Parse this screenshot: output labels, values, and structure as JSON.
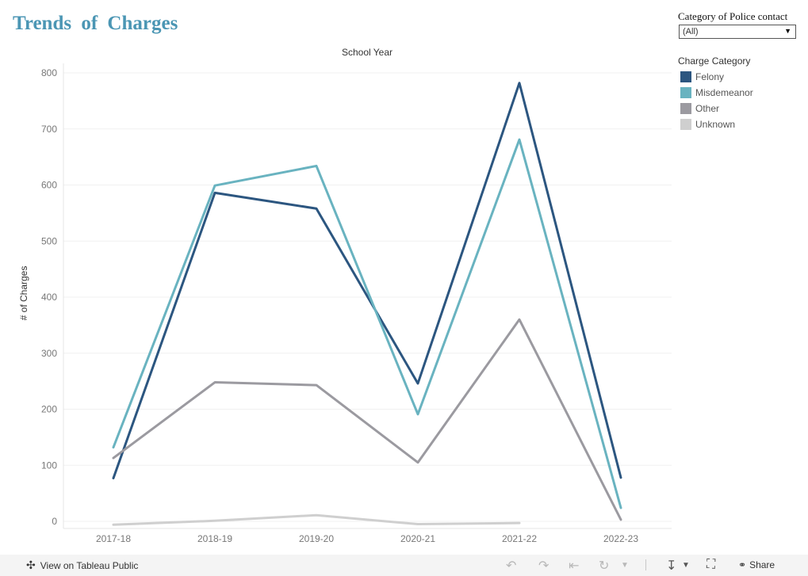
{
  "title": "Trends  of  Charges",
  "filter": {
    "label": "Category of Police contact",
    "value": "(All)"
  },
  "legend": {
    "title": "Charge Category",
    "items": [
      {
        "label": "Felony",
        "color": "#2c5680"
      },
      {
        "label": "Misdemeanor",
        "color": "#69b3c0"
      },
      {
        "label": "Other",
        "color": "#9b9aa0"
      },
      {
        "label": "Unknown",
        "color": "#cfcfcf"
      }
    ]
  },
  "footer": {
    "view_link": "View on Tableau Public",
    "share_label": "Share"
  },
  "chart_data": {
    "type": "line",
    "title": "School Year",
    "xlabel": "",
    "ylabel": "# of Charges",
    "categories": [
      "2017-18",
      "2018-19",
      "2019-20",
      "2020-21",
      "2021-22",
      "2022-23"
    ],
    "ylim": [
      0,
      800
    ],
    "yticks": [
      0,
      100,
      200,
      300,
      400,
      500,
      600,
      700,
      800
    ],
    "grid": true,
    "legend_position": "right",
    "series": [
      {
        "name": "Felony",
        "color": "#2c5680",
        "values": [
          77,
          586,
          558,
          246,
          782,
          78
        ]
      },
      {
        "name": "Misdemeanor",
        "color": "#69b3c0",
        "values": [
          132,
          599,
          634,
          191,
          681,
          24
        ]
      },
      {
        "name": "Other",
        "color": "#9b9aa0",
        "values": [
          113,
          248,
          243,
          105,
          360,
          3
        ]
      },
      {
        "name": "Unknown",
        "color": "#cfcfcf",
        "values": [
          -6,
          1,
          11,
          -5,
          -3,
          null
        ]
      }
    ]
  }
}
